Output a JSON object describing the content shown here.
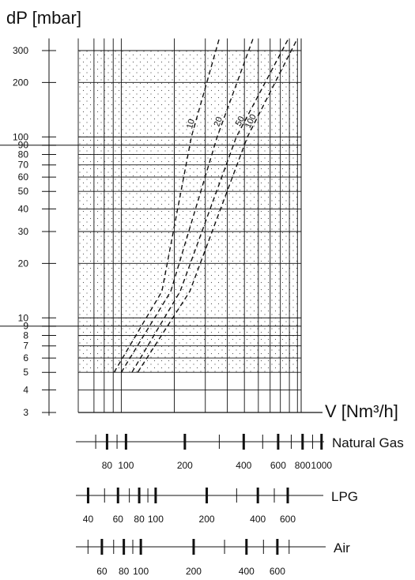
{
  "chart_data": {
    "type": "line",
    "title": "",
    "ylabel": "dP [mbar]",
    "xlabel": "V [Nm³/h]",
    "y_scale": "log",
    "x_scale": "log",
    "ylim": [
      3,
      350
    ],
    "y_ticks": [
      3,
      4,
      5,
      6,
      7,
      8,
      9,
      10,
      20,
      30,
      40,
      50,
      60,
      70,
      80,
      90,
      100,
      200,
      300
    ],
    "y_tick_labels": [
      "3",
      "4",
      "5",
      "6",
      "7",
      "8",
      "9",
      "10",
      "20",
      "30",
      "40",
      "50",
      "60",
      "70",
      "80",
      "90",
      "100",
      "200",
      "300"
    ],
    "x_reference_scale": "Natural Gas",
    "xlim": [
      57,
      1050
    ],
    "grid": true,
    "shaded_region": {
      "x": [
        57,
        1000
      ],
      "y": [
        5,
        300
      ]
    },
    "series": [
      {
        "name": "10",
        "style": "dashed",
        "points": [
          [
            91,
            5
          ],
          [
            170,
            14
          ],
          [
            250,
            100
          ],
          [
            360,
            350
          ]
        ]
      },
      {
        "name": "20",
        "style": "dashed",
        "points": [
          [
            100,
            5
          ],
          [
            191,
            14
          ],
          [
            350,
            100
          ],
          [
            560,
            350
          ]
        ]
      },
      {
        "name": "50",
        "style": "dashed",
        "points": [
          [
            115,
            5
          ],
          [
            216,
            14
          ],
          [
            450,
            100
          ],
          [
            890,
            350
          ]
        ]
      },
      {
        "name": "100",
        "style": "dashed",
        "points": [
          [
            124,
            5
          ],
          [
            245,
            14
          ],
          [
            520,
            100
          ],
          [
            1000,
            350
          ]
        ]
      }
    ],
    "scales": [
      {
        "name": "Natural Gas",
        "min": 57,
        "max": 1050,
        "major": [
          70,
          80,
          90,
          100,
          200,
          300,
          400,
          500,
          600,
          700,
          800,
          900,
          1000
        ],
        "labels": [
          "80",
          "100",
          "200",
          "400",
          "600",
          "800",
          "1000"
        ]
      },
      {
        "name": "LPG",
        "min": 35,
        "max": 720,
        "major": [
          40,
          50,
          60,
          70,
          80,
          90,
          100,
          200,
          300,
          400,
          500,
          600
        ],
        "labels": [
          "40",
          "60",
          "80",
          "100",
          "200",
          "400",
          "600"
        ]
      },
      {
        "name": "Air",
        "min": 44,
        "max": 820,
        "major": [
          50,
          60,
          70,
          80,
          90,
          100,
          200,
          300,
          400,
          500,
          600,
          700
        ],
        "labels": [
          "60",
          "80",
          "100",
          "200",
          "400",
          "600"
        ]
      }
    ]
  }
}
